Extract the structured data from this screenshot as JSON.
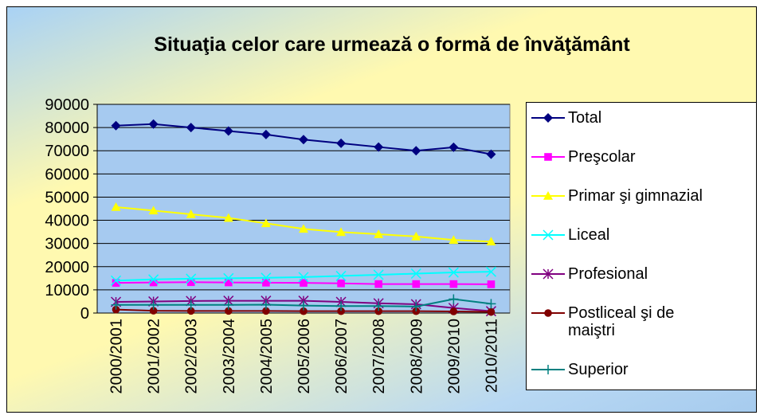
{
  "chart_data": {
    "type": "line",
    "title": "Situaţia celor care urmează o formă de învăţământ",
    "categories": [
      "2000/2001",
      "2001/2002",
      "2002/2003",
      "2003/2004",
      "2004/2005",
      "2005/2006",
      "2006/2007",
      "2007/2008",
      "2008/2009",
      "2009/2010",
      "2010/2011"
    ],
    "ylim": [
      0,
      90000
    ],
    "yticks": [
      0,
      10000,
      20000,
      30000,
      40000,
      50000,
      60000,
      70000,
      80000,
      90000
    ],
    "grid": true,
    "legend": "right",
    "series": [
      {
        "name": "Total",
        "color": "#000080",
        "marker": "diamond",
        "values": [
          80800,
          81500,
          80000,
          78500,
          77000,
          74800,
          73200,
          71600,
          70000,
          71500,
          68500
        ]
      },
      {
        "name": "Preşcolar",
        "color": "#ff00ff",
        "marker": "square",
        "values": [
          13000,
          13200,
          13300,
          13200,
          13100,
          13000,
          12800,
          12500,
          12500,
          12500,
          12400
        ]
      },
      {
        "name": "Primar şi gimnazial",
        "color": "#ffff00",
        "marker": "triangle",
        "values": [
          45700,
          44200,
          42600,
          41000,
          38700,
          36300,
          34900,
          34000,
          33000,
          31500,
          30800
        ]
      },
      {
        "name": "Liceal",
        "color": "#00ffff",
        "marker": "x",
        "values": [
          14000,
          14500,
          14800,
          15000,
          15200,
          15500,
          16000,
          16500,
          17000,
          17500,
          17800
        ]
      },
      {
        "name": "Profesional",
        "color": "#800080",
        "marker": "asterisk",
        "values": [
          4800,
          5000,
          5200,
          5300,
          5300,
          5300,
          4800,
          4200,
          3800,
          2200,
          800
        ]
      },
      {
        "name": "Postliceal şi de maiştri",
        "color": "#800000",
        "marker": "circle",
        "values": [
          1500,
          1000,
          900,
          900,
          900,
          800,
          800,
          800,
          800,
          700,
          500
        ]
      },
      {
        "name": "Superior",
        "color": "#008080",
        "marker": "plus",
        "values": [
          3500,
          3500,
          3500,
          3500,
          3600,
          3200,
          3000,
          3000,
          2800,
          6000,
          4000
        ]
      }
    ]
  }
}
